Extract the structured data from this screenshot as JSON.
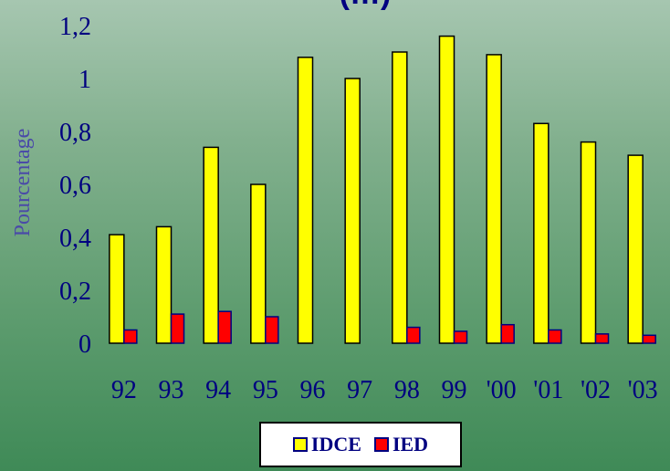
{
  "chart_data": {
    "type": "bar",
    "title": "(…)",
    "ylabel": "Pourcentage",
    "categories": [
      "92",
      "93",
      "94",
      "95",
      "96",
      "97",
      "98",
      "99",
      "'00",
      "'01",
      "'02",
      "'03"
    ],
    "series": [
      {
        "name": "IDCE",
        "color": "#ffff00",
        "values": [
          0.41,
          0.44,
          0.74,
          0.6,
          1.08,
          1.0,
          1.1,
          1.16,
          1.09,
          0.83,
          0.76,
          0.71
        ]
      },
      {
        "name": "IED",
        "color": "#ff0000",
        "values": [
          0.05,
          0.11,
          0.12,
          0.1,
          0,
          0,
          0.06,
          0.045,
          0.07,
          0.05,
          0.035,
          0.03
        ]
      }
    ],
    "ylim": [
      0,
      1.2
    ],
    "yticks": [
      "0",
      "0,2",
      "0,4",
      "0,6",
      "0,8",
      "1",
      "1,2"
    ],
    "grid": false,
    "legend_position": "bottom-center",
    "bar_border_color": "#000080"
  }
}
